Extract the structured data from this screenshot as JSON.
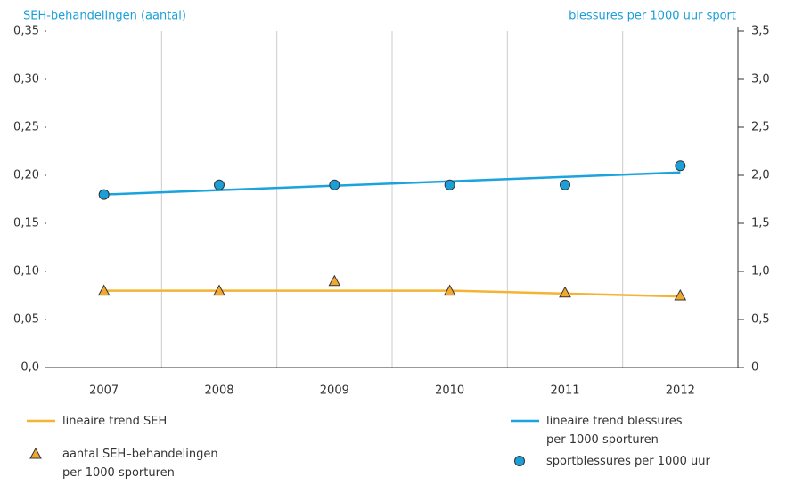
{
  "chart_data": {
    "type": "line",
    "categories": [
      "2007",
      "2008",
      "2009",
      "2010",
      "2011",
      "2012"
    ],
    "y_label": "SEH-behandelingen (aantal)",
    "y2_label": "blessures per 1000 uur sport",
    "ylim": [
      0,
      0.35
    ],
    "yticks": [
      {
        "value": 0,
        "label": "0,0"
      },
      {
        "value": 0.05,
        "label": "0,05"
      },
      {
        "value": 0.1,
        "label": "0,10"
      },
      {
        "value": 0.15,
        "label": "0,15"
      },
      {
        "value": 0.2,
        "label": "0,20"
      },
      {
        "value": 0.25,
        "label": "0,25"
      },
      {
        "value": 0.3,
        "label": "0,30"
      },
      {
        "value": 0.35,
        "label": "0,35"
      }
    ],
    "y2lim": [
      0,
      3.5
    ],
    "y2ticks": [
      0,
      {
        "value": 0.5,
        "label": "0,5"
      },
      {
        "value": 1,
        "label": "1,0"
      },
      {
        "value": 1.5,
        "label": "1,5"
      },
      {
        "value": 2,
        "label": "2,0"
      },
      {
        "value": 2.5,
        "label": "2,5"
      },
      {
        "value": 3,
        "label": "3,0"
      },
      {
        "value": 3.5,
        "label": "3,5"
      }
    ],
    "grid": true,
    "series": [
      {
        "name": "lineaire trend SEH",
        "color": "#f5b335",
        "marker": "none",
        "values": [
          0.08,
          0.08,
          0.08,
          0.08,
          0.077,
          0.074
        ]
      },
      {
        "name": "aantal SEH–behandelingen\nper 1000 sporturen",
        "color": "#f0a830",
        "marker": "triangle",
        "values": [
          0.08,
          0.08,
          0.09,
          0.08,
          0.078,
          0.075
        ]
      },
      {
        "name": "lineaire trend blessures\nper 1000 sporturen",
        "color": "#1aa3dc",
        "marker": "none",
        "axis": "y2",
        "values": [
          1.8,
          1.846,
          1.892,
          1.938,
          1.984,
          2.03
        ]
      },
      {
        "name": "sportblessures per 1000 uur",
        "color": "#1a9fd8",
        "marker": "circle",
        "axis": "y2",
        "values": [
          1.8,
          1.9,
          1.9,
          1.9,
          1.9,
          2.1
        ]
      }
    ]
  }
}
